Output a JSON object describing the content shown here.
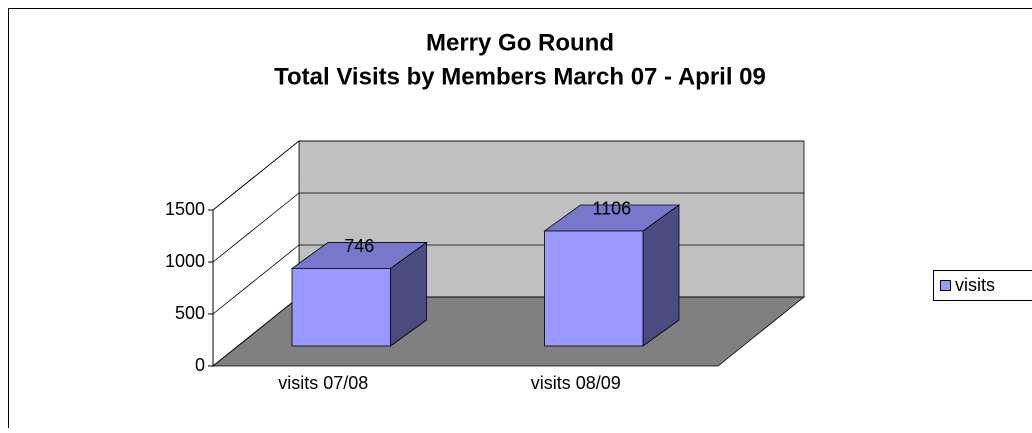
{
  "chart_data": {
    "type": "bar3d",
    "title": "Merry Go Round",
    "subtitle": "Total Visits by Members March 07 - April 09",
    "categories": [
      "visits 07/08",
      "visits 08/09"
    ],
    "series": [
      {
        "name": "visits",
        "color": "#9999ff",
        "values": [
          746,
          1106
        ]
      }
    ],
    "ylim": [
      0,
      1500
    ],
    "yticks": [
      0,
      500,
      1000,
      1500
    ],
    "grid": true,
    "legend": "right"
  }
}
